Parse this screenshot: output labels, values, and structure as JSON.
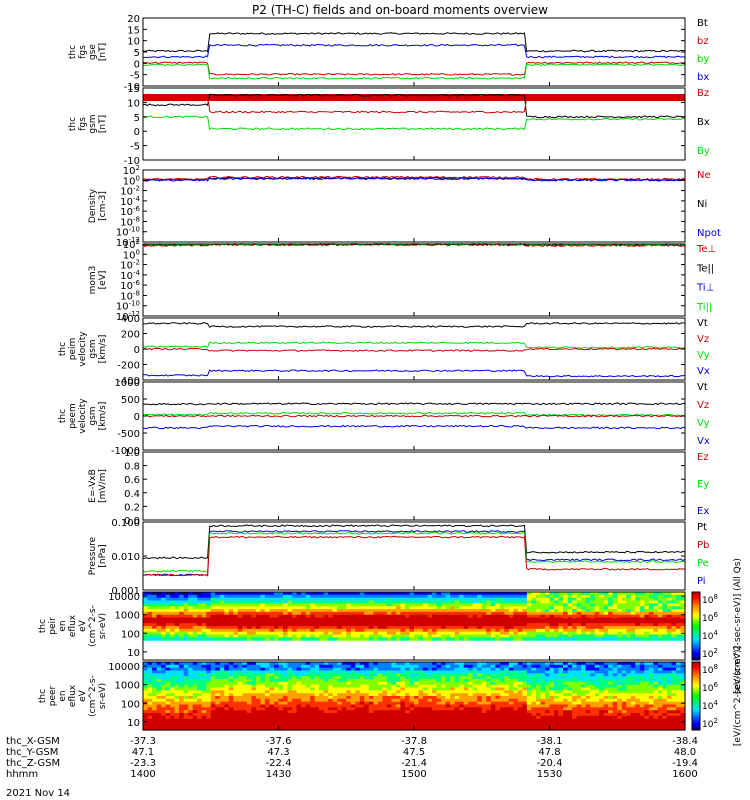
{
  "title": "P2 (TH-C) fields and on-board moments overview",
  "date": "2021 Nov 14",
  "colors": {
    "black": "#000000",
    "red": "#cc0000",
    "green": "#00dd00",
    "blue": "#0000dd",
    "frame": "#000000"
  },
  "ephemeris": {
    "rows": [
      {
        "label": "thc_X-GSM",
        "values": [
          "-37.3",
          "-37.6",
          "-37.8",
          "-38.1",
          "-38.4"
        ]
      },
      {
        "label": "thc_Y-GSM",
        "values": [
          "47.1",
          "47.3",
          "47.5",
          "47.8",
          "48.0"
        ]
      },
      {
        "label": "thc_Z-GSM",
        "values": [
          "-23.3",
          "-22.4",
          "-21.4",
          "-20.4",
          "-19.4"
        ]
      },
      {
        "label": "hhmm",
        "values": [
          "1400",
          "1430",
          "1500",
          "1530",
          "1600"
        ]
      }
    ]
  },
  "colorbar": {
    "top": {
      "ticks": [
        "10^8",
        "10^6",
        "10^4",
        "10^2"
      ],
      "label": "[eV/(cm^2-sec-sr-eV)] (All Qs)"
    },
    "bottom": {
      "ticks": [
        "10^8",
        "10^6",
        "10^4",
        "10^2"
      ],
      "label": "[eV/(cm^2-sec-sr-eV)]"
    }
  },
  "chart_data": [
    {
      "type": "line",
      "id": "fgs",
      "ylabel": [
        "thc",
        "fgs",
        "gse",
        "[nT]"
      ],
      "ylim": [
        -15,
        20
      ],
      "yticks": [
        "20",
        "15",
        "10",
        "5",
        "0",
        "-5",
        "-10"
      ],
      "legend": [
        {
          "text": "Bt",
          "color": "black"
        },
        {
          "text": "bz",
          "color": "red"
        },
        {
          "text": "by",
          "color": "green"
        },
        {
          "text": "bx",
          "color": "blue"
        }
      ],
      "series": [
        {
          "color": "black",
          "level": [
            3,
            12,
            3
          ]
        },
        {
          "color": "blue",
          "level": [
            0,
            6,
            0
          ]
        },
        {
          "color": "red",
          "level": [
            -3,
            -9,
            -3
          ]
        },
        {
          "color": "green",
          "level": [
            -4,
            -11,
            -4
          ]
        }
      ]
    },
    {
      "type": "line",
      "id": "fgs_gsm",
      "ylabel": [
        "thc",
        "fgs",
        "gsm",
        "[nT]"
      ],
      "ylim": [
        -15,
        15
      ],
      "yticks": [
        "15",
        "10",
        "5",
        "0",
        "-5",
        "-10"
      ],
      "legend": [
        {
          "text": "Bz",
          "color": "red"
        },
        {
          "text": "Bx",
          "color": "black"
        },
        {
          "text": "By",
          "color": "green"
        }
      ],
      "series": [
        {
          "color": "black",
          "level": [
            8,
            12,
            3
          ]
        },
        {
          "color": "red",
          "level": [
            12,
            5,
            11
          ]
        },
        {
          "color": "green",
          "level": [
            3,
            -2,
            2
          ]
        }
      ]
    },
    {
      "type": "line",
      "id": "density",
      "ylabel": [
        "Density",
        "[cm-3]"
      ],
      "ylim": [
        -12,
        2
      ],
      "yticks": [
        "10^2",
        "10^0",
        "10^-2",
        "10^-4",
        "10^-6",
        "10^-8",
        "10^-10",
        "10^-12"
      ],
      "legend": [
        {
          "text": "Ne",
          "color": "red"
        },
        {
          "text": "Ni",
          "color": "black"
        },
        {
          "text": "Npot",
          "color": "blue"
        }
      ],
      "series": [
        {
          "color": "black",
          "level": [
            0.1,
            0.4,
            0.1
          ]
        },
        {
          "color": "red",
          "level": [
            0.2,
            0.6,
            0.2
          ]
        },
        {
          "color": "blue",
          "level": [
            0.0,
            0.3,
            0.0
          ]
        }
      ]
    },
    {
      "type": "line",
      "id": "temp",
      "ylabel": [
        "mom3",
        "[eV]"
      ],
      "ylim": [
        -12,
        2
      ],
      "yticks": [
        "10^2",
        "10^0",
        "10^-2",
        "10^-4",
        "10^-6",
        "10^-8",
        "10^-10",
        "10^-12"
      ],
      "legend": [
        {
          "text": "Te⊥",
          "color": "red"
        },
        {
          "text": "Te||",
          "color": "black"
        },
        {
          "text": "Ti⊥",
          "color": "blue"
        },
        {
          "text": "Ti||",
          "color": "green"
        }
      ],
      "series": [
        {
          "color": "black",
          "level": [
            1.8,
            1.9,
            1.8
          ]
        },
        {
          "color": "red",
          "level": [
            1.7,
            1.85,
            1.7
          ]
        },
        {
          "color": "green",
          "level": [
            1.9,
            1.95,
            1.9
          ]
        }
      ]
    },
    {
      "type": "line",
      "id": "peim",
      "ylabel": [
        "thc",
        "peim",
        "velocity",
        "gsm",
        "[km/s]"
      ],
      "ylim": [
        -400,
        400
      ],
      "yticks": [
        "400",
        "200",
        "0",
        "-200",
        "-400"
      ],
      "legend": [
        {
          "text": "Vt",
          "color": "black"
        },
        {
          "text": "Vz",
          "color": "red"
        },
        {
          "text": "Vy",
          "color": "green"
        },
        {
          "text": "Vx",
          "color": "blue"
        }
      ],
      "series": [
        {
          "color": "black",
          "level": [
            330,
            290,
            330
          ]
        },
        {
          "color": "green",
          "level": [
            30,
            80,
            20
          ]
        },
        {
          "color": "red",
          "level": [
            0,
            -20,
            0
          ]
        },
        {
          "color": "blue",
          "level": [
            -340,
            -280,
            -350
          ]
        }
      ]
    },
    {
      "type": "line",
      "id": "peem",
      "ylabel": [
        "thc",
        "peem",
        "velocity",
        "gsm",
        "[km/s]"
      ],
      "ylim": [
        -1000,
        1000
      ],
      "yticks": [
        "1000",
        "500",
        "0",
        "-500",
        "-1000"
      ],
      "legend": [
        {
          "text": "Vt",
          "color": "black"
        },
        {
          "text": "Vz",
          "color": "red"
        },
        {
          "text": "Vy",
          "color": "green"
        },
        {
          "text": "Vx",
          "color": "blue"
        }
      ],
      "series": [
        {
          "color": "black",
          "level": [
            350,
            360,
            360
          ]
        },
        {
          "color": "green",
          "level": [
            40,
            80,
            30
          ]
        },
        {
          "color": "red",
          "level": [
            0,
            0,
            0
          ]
        },
        {
          "color": "blue",
          "level": [
            -350,
            -300,
            -350
          ]
        }
      ]
    },
    {
      "type": "line",
      "id": "efield",
      "ylabel": [
        "E=-VxB",
        "[mV/m]"
      ],
      "ylim": [
        0,
        1
      ],
      "yticks": [
        "1.0",
        "0.8",
        "0.6",
        "0.4",
        "0.2",
        "0.0"
      ],
      "legend": [
        {
          "text": "Ez",
          "color": "red"
        },
        {
          "text": "Ey",
          "color": "green"
        },
        {
          "text": "Ex",
          "color": "blue"
        }
      ],
      "series": []
    },
    {
      "type": "line",
      "id": "pressure",
      "ylabel": [
        "Pressure",
        "[nPa]"
      ],
      "ylim": [
        -2.3,
        -0.5
      ],
      "yticks": [
        "0.100",
        "0.010",
        "0.001"
      ],
      "legend": [
        {
          "text": "Pt",
          "color": "black"
        },
        {
          "text": "Pb",
          "color": "red"
        },
        {
          "text": "Pe",
          "color": "green"
        },
        {
          "text": "Pi",
          "color": "blue"
        }
      ],
      "series": [
        {
          "color": "black",
          "level": [
            -1.45,
            -0.6,
            -1.3
          ]
        },
        {
          "color": "blue",
          "level": [
            -1.9,
            -0.75,
            -1.5
          ]
        },
        {
          "color": "green",
          "level": [
            -1.8,
            -0.8,
            -1.55
          ]
        },
        {
          "color": "red",
          "level": [
            -1.9,
            -0.9,
            -1.75
          ]
        }
      ]
    },
    {
      "type": "heatmap",
      "id": "peir",
      "ylabel": [
        "thc",
        "peir",
        "en",
        "eflux",
        "eV",
        "(cm^2-s-",
        "sr-eV)"
      ],
      "ylim": [
        0.7,
        4.3
      ],
      "yticks": [
        "10000",
        "1000",
        "100",
        "10"
      ],
      "gap_bottom": true
    },
    {
      "type": "heatmap",
      "id": "peer",
      "ylabel": [
        "thc",
        "peer",
        "en",
        "eflux",
        "eV",
        "(cm^2-s-",
        "sr-eV)"
      ],
      "ylim": [
        0.7,
        4.3
      ],
      "yticks": [
        "10000",
        "1000",
        "100",
        "10"
      ],
      "gap_bottom": false
    }
  ]
}
